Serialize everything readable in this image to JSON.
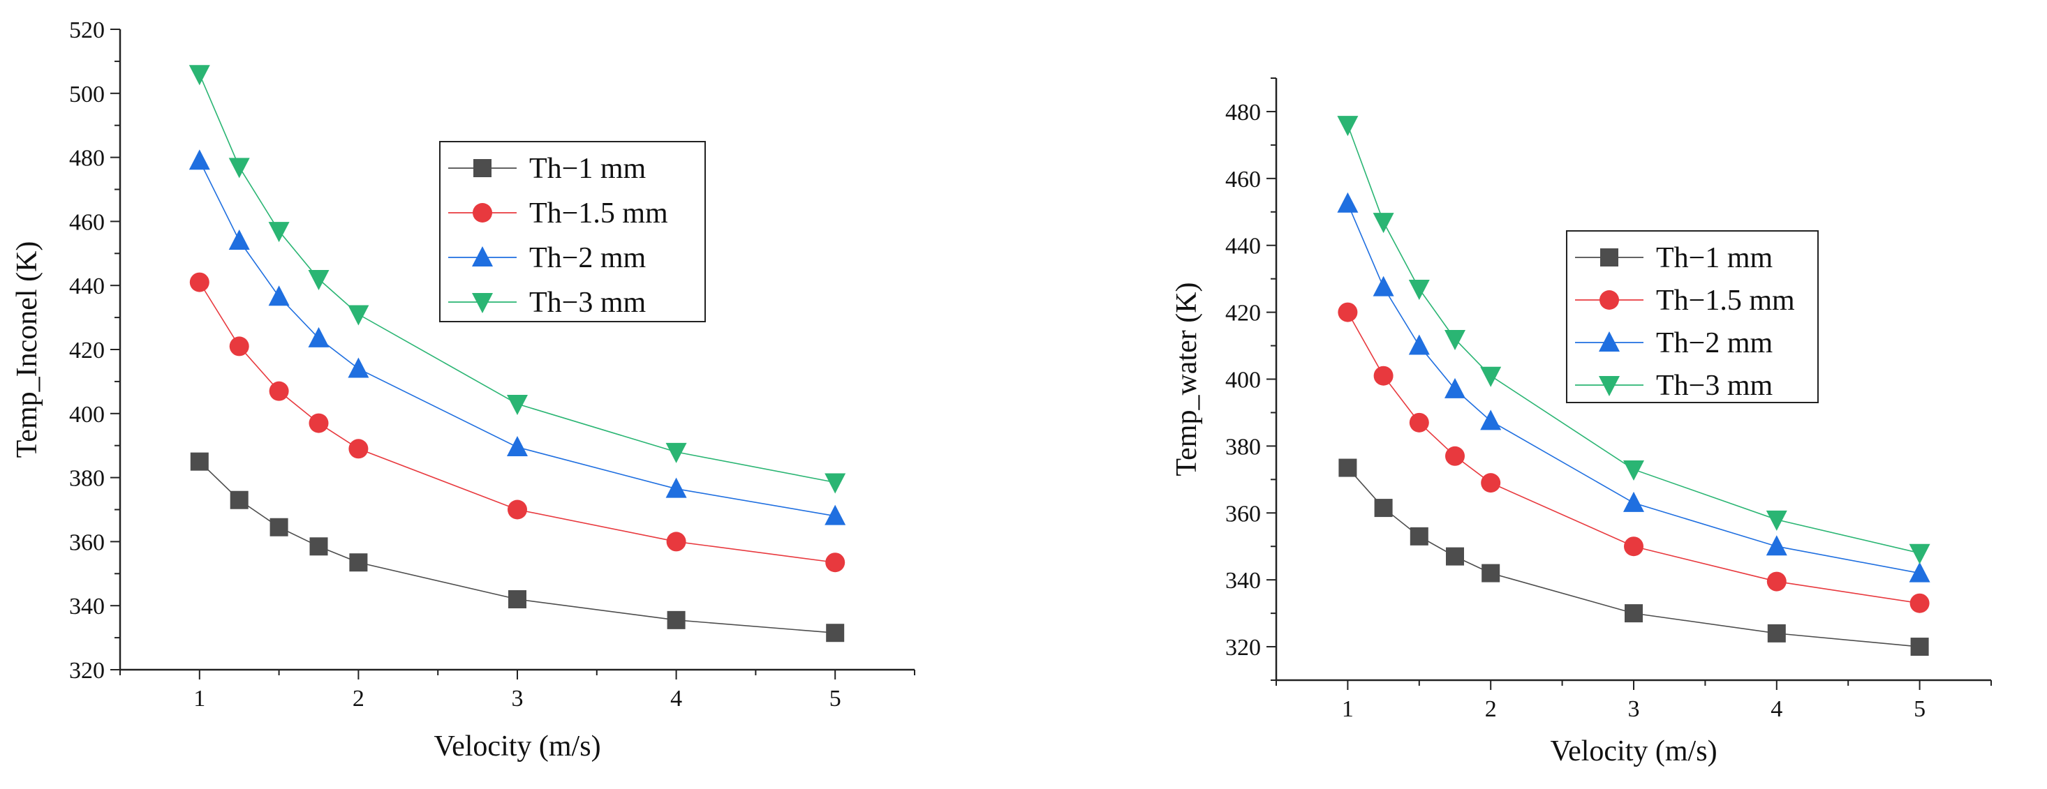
{
  "chart_data": [
    {
      "type": "line",
      "xlabel": "Velocity (m/s)",
      "ylabel": "Temp_Inconel (K)",
      "xlim": [
        0.5,
        5.5
      ],
      "ylim": [
        320,
        520
      ],
      "xticks": [
        1,
        2,
        3,
        4,
        5
      ],
      "yticks": [
        320,
        340,
        360,
        380,
        400,
        420,
        440,
        460,
        480,
        500,
        520
      ],
      "legend_position": "top-center",
      "x": [
        1,
        1.25,
        1.5,
        1.75,
        2,
        3,
        4,
        5
      ],
      "series": [
        {
          "name": "Th−1 mm",
          "color": "#4d4d4d",
          "marker": "square",
          "values": [
            385,
            373,
            364.5,
            358.5,
            353.5,
            342,
            335.5,
            331.5
          ]
        },
        {
          "name": "Th−1.5 mm",
          "color": "#e8393e",
          "marker": "circle",
          "values": [
            441,
            421,
            407,
            397,
            389,
            370,
            360,
            353.5
          ]
        },
        {
          "name": "Th−2 mm",
          "color": "#1f6fe0",
          "marker": "triangle-up",
          "values": [
            479,
            454,
            436.5,
            423.5,
            414,
            389.5,
            376.5,
            368
          ]
        },
        {
          "name": "Th−3 mm",
          "color": "#2ab573",
          "marker": "triangle-down",
          "values": [
            506,
            477,
            457,
            442,
            431,
            403,
            388,
            378.5
          ]
        }
      ]
    },
    {
      "type": "line",
      "xlabel": "Velocity (m/s)",
      "ylabel": "Temp_water (K)",
      "xlim": [
        0.5,
        5.5
      ],
      "ylim": [
        310,
        490
      ],
      "xticks": [
        1,
        2,
        3,
        4,
        5
      ],
      "yticks": [
        320,
        340,
        360,
        380,
        400,
        420,
        440,
        460,
        480
      ],
      "legend_position": "center-right",
      "x": [
        1,
        1.25,
        1.5,
        1.75,
        2,
        3,
        4,
        5
      ],
      "series": [
        {
          "name": "Th−1 mm",
          "color": "#4d4d4d",
          "marker": "square",
          "values": [
            373.5,
            361.5,
            353,
            347,
            342,
            330,
            324,
            320
          ]
        },
        {
          "name": "Th−1.5 mm",
          "color": "#e8393e",
          "marker": "circle",
          "values": [
            420,
            401,
            387,
            377,
            369,
            350,
            339.5,
            333
          ]
        },
        {
          "name": "Th−2 mm",
          "color": "#1f6fe0",
          "marker": "triangle-up",
          "values": [
            452.5,
            427.5,
            410,
            397,
            387.5,
            363,
            350,
            342
          ]
        },
        {
          "name": "Th−3 mm",
          "color": "#2ab573",
          "marker": "triangle-down",
          "values": [
            476,
            447,
            427,
            412,
            401,
            373,
            358,
            348
          ]
        }
      ]
    }
  ]
}
